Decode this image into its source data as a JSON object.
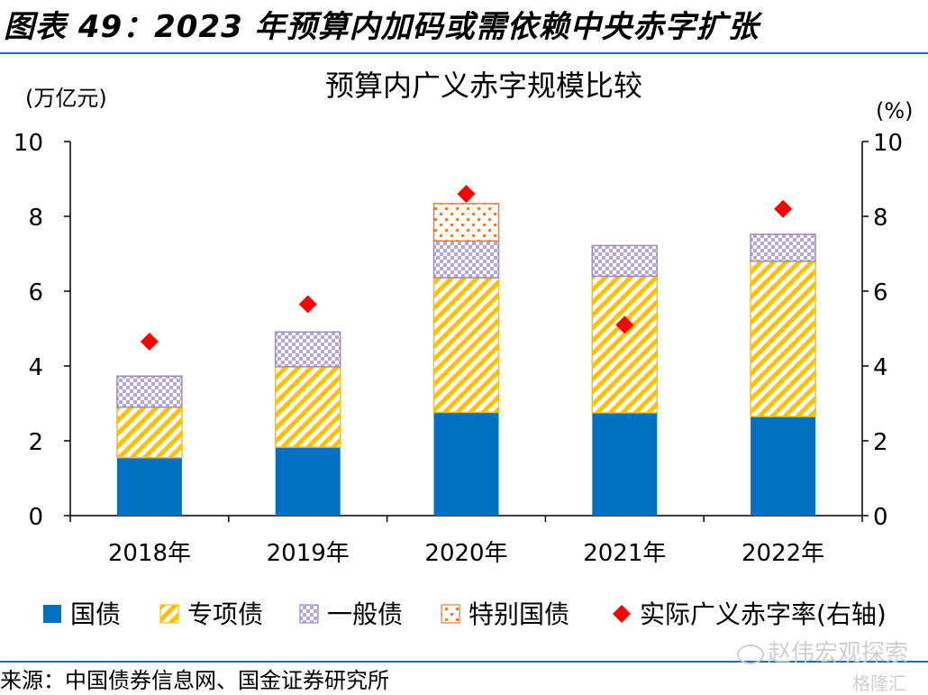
{
  "header": {
    "title": "图表 49：2023 年预算内加码或需依赖中央赤字扩张"
  },
  "source_text": "来源：中国债券信息网、国金证券研究所",
  "watermark": "赵伟宏观探索",
  "watermark2": "格隆汇",
  "chart_data": {
    "type": "bar",
    "title": "预算内广义赤字规模比较",
    "y_left_unit": "(万亿元)",
    "y_right_unit": "(%)",
    "ylim": [
      0,
      10
    ],
    "y2lim": [
      0,
      10
    ],
    "yticks": [
      "0",
      "2",
      "4",
      "6",
      "8",
      "10"
    ],
    "categories": [
      "2018年",
      "2019年",
      "2020年",
      "2021年",
      "2022年"
    ],
    "series": [
      {
        "name": "国债",
        "kind": "stacked-bar",
        "color": "#0070c0",
        "values": [
          1.55,
          1.83,
          2.76,
          2.75,
          2.65
        ]
      },
      {
        "name": "专项债",
        "kind": "stacked-bar",
        "color": "#ffc000",
        "values": [
          1.35,
          2.15,
          3.6,
          3.65,
          4.15
        ]
      },
      {
        "name": "一般债",
        "kind": "stacked-bar",
        "color": "#b4a7d6",
        "values": [
          0.83,
          0.93,
          0.98,
          0.82,
          0.72
        ]
      },
      {
        "name": "特别国债",
        "kind": "stacked-bar",
        "color": "#ed7d31",
        "values": [
          0,
          0,
          1.0,
          0,
          0
        ]
      },
      {
        "name": "实际广义赤字率(右轴)",
        "kind": "marker",
        "color": "#ff0000",
        "values": [
          4.65,
          5.65,
          8.6,
          5.1,
          8.2
        ]
      }
    ]
  }
}
